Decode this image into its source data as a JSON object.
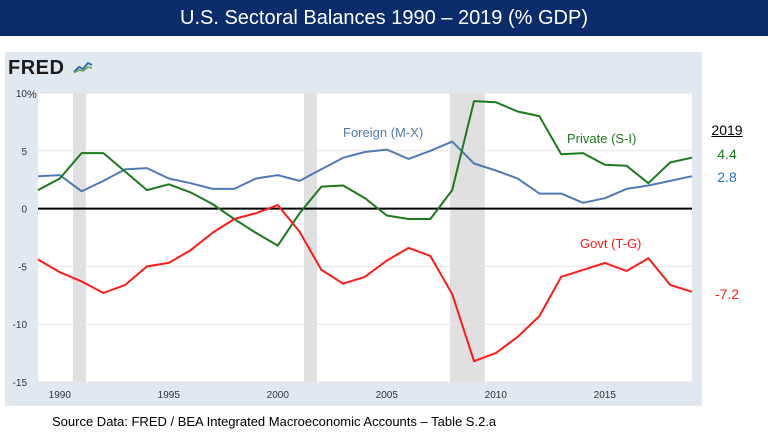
{
  "header": {
    "title": "U.S. Sectoral Balances 1990 – 2019 (% GDP)"
  },
  "logo": {
    "text": "FRED"
  },
  "chart_data": {
    "type": "line",
    "title": "U.S. Sectoral Balances 1990 – 2019 (% GDP)",
    "ylabel_unit": "%",
    "xlim": [
      1989,
      2019
    ],
    "ylim": [
      -15,
      10
    ],
    "yticks": [
      -15,
      -10,
      -5,
      0,
      5,
      10
    ],
    "xticks": [
      1990,
      1995,
      2000,
      2005,
      2010,
      2015
    ],
    "grid": true,
    "recessions": [
      [
        1990.6,
        1991.2
      ],
      [
        2001.2,
        2001.8
      ],
      [
        2007.9,
        2009.5
      ]
    ],
    "x": [
      1989,
      1990,
      1991,
      1992,
      1993,
      1994,
      1995,
      1996,
      1997,
      1998,
      1999,
      2000,
      2001,
      2002,
      2003,
      2004,
      2005,
      2006,
      2007,
      2008,
      2009,
      2010,
      2011,
      2012,
      2013,
      2014,
      2015,
      2016,
      2017,
      2018,
      2019
    ],
    "series": [
      {
        "name": "Foreign (M-X)",
        "color": "#4f7bb4",
        "values": [
          2.8,
          2.9,
          1.5,
          2.4,
          3.4,
          3.5,
          2.6,
          2.2,
          1.7,
          1.7,
          2.6,
          2.9,
          2.4,
          3.4,
          4.4,
          4.9,
          5.1,
          4.3,
          5.0,
          5.8,
          3.9,
          3.3,
          2.6,
          1.3,
          1.3,
          0.5,
          0.9,
          1.7,
          2.0,
          2.4,
          2.8
        ]
      },
      {
        "name": "Private (S-I)",
        "color": "#1c7a1c",
        "values": [
          1.6,
          2.6,
          4.8,
          4.8,
          3.2,
          1.6,
          2.1,
          1.4,
          0.4,
          -0.9,
          -2.1,
          -3.2,
          -0.4,
          1.9,
          2.0,
          0.9,
          -0.6,
          -0.9,
          -0.9,
          1.6,
          9.3,
          9.2,
          8.4,
          8.0,
          4.7,
          4.8,
          3.8,
          3.7,
          2.2,
          4.0,
          4.4
        ]
      },
      {
        "name": "Govt (T-G)",
        "color": "#ff1a1a",
        "values": [
          -4.4,
          -5.5,
          -6.3,
          -7.3,
          -6.6,
          -5.0,
          -4.7,
          -3.6,
          -2.1,
          -0.9,
          -0.4,
          0.3,
          -2.0,
          -5.3,
          -6.5,
          -5.9,
          -4.5,
          -3.4,
          -4.1,
          -7.4,
          -13.2,
          -12.5,
          -11.1,
          -9.3,
          -5.9,
          -5.3,
          -4.7,
          -5.4,
          -4.3,
          -6.6,
          -7.2
        ]
      }
    ],
    "labels_2019": {
      "header": "2019",
      "private": "4.4",
      "foreign": "2.8",
      "govt": "-7.2"
    }
  },
  "source": "Source Data:  FRED / BEA Integrated Macroeconomic Accounts – Table S.2.a"
}
